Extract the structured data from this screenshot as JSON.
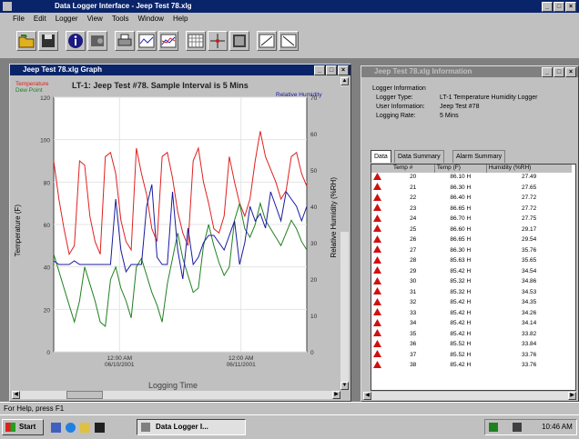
{
  "app": {
    "title": "Data Logger Interface - Jeep Test 78.xlg",
    "menu": [
      "File",
      "Edit",
      "Logger",
      "View",
      "Tools",
      "Window",
      "Help"
    ]
  },
  "graph_window": {
    "title": "Jeep Test 78.xlg Graph",
    "heading": "LT-1: Jeep Test #78.  Sample Interval is 5 Mins",
    "legend_temp": "Temperature",
    "legend_dew": "Dew Point",
    "legend_rh": "Relative Humidity"
  },
  "info_window": {
    "title": "Jeep Test 78.xlg Information",
    "section_label": "Logger Information",
    "fields": [
      {
        "label": "Logger Type:",
        "value": "LT-1 Temperature Humidity Logger"
      },
      {
        "label": "User Information:",
        "value": "Jeep Test #78"
      },
      {
        "label": "Logging Rate:",
        "value": "5 Mins"
      }
    ],
    "tabs": [
      "Data",
      "Data Summary",
      "Alarm Summary"
    ],
    "columns": [
      "Temp #",
      "Temp (F)",
      "Humidity (%RH)"
    ],
    "rows": [
      [
        "20",
        "86.10 H",
        "27.49"
      ],
      [
        "21",
        "86.30 H",
        "27.65"
      ],
      [
        "22",
        "86.40 H",
        "27.72"
      ],
      [
        "23",
        "86.65 H",
        "27.72"
      ],
      [
        "24",
        "86.70 H",
        "27.75"
      ],
      [
        "25",
        "86.60 H",
        "29.17"
      ],
      [
        "26",
        "86.65 H",
        "29.54"
      ],
      [
        "27",
        "86.30 H",
        "35.76"
      ],
      [
        "28",
        "85.63 H",
        "35.65"
      ],
      [
        "29",
        "85.42 H",
        "34.54"
      ],
      [
        "30",
        "85.32 H",
        "34.86"
      ],
      [
        "31",
        "85.32 H",
        "34.53"
      ],
      [
        "32",
        "85.42 H",
        "34.35"
      ],
      [
        "33",
        "85.42 H",
        "34.26"
      ],
      [
        "34",
        "85.42 H",
        "34.14"
      ],
      [
        "35",
        "85.42 H",
        "33.82"
      ],
      [
        "36",
        "85.52 H",
        "33.84"
      ],
      [
        "37",
        "85.52 H",
        "33.76"
      ],
      [
        "38",
        "85.42 H",
        "33.76"
      ]
    ]
  },
  "statusbar": {
    "text": "For Help, press F1"
  },
  "taskbar": {
    "start": "Start",
    "task": "Data Logger I...",
    "clock": "10:46 AM"
  },
  "colors": {
    "temperature": "#e02020",
    "dewpoint": "#208020",
    "humidity": "#1a1aa0",
    "alarm": "#d01010"
  },
  "chart_data": {
    "type": "line",
    "xlabel": "Logging Time",
    "ylabel": "Temperature (F)",
    "y2label": "Relative Humidity (%RH)",
    "ylim": [
      0,
      120
    ],
    "y2lim": [
      0,
      70
    ],
    "yticks": [
      "0",
      "20",
      "40",
      "60",
      "80",
      "100",
      "120"
    ],
    "y2ticks": [
      "0",
      "10",
      "20",
      "30",
      "40",
      "50",
      "60",
      "70"
    ],
    "xticks": [
      {
        "time": "12:00 AM",
        "date": "06/10/2001"
      },
      {
        "time": "12:00 AM",
        "date": "06/11/2001"
      }
    ],
    "series": [
      {
        "name": "Temperature",
        "axis": "left",
        "values": [
          90,
          72,
          58,
          46,
          50,
          90,
          88,
          64,
          52,
          46,
          92,
          94,
          84,
          62,
          52,
          48,
          96,
          84,
          74,
          58,
          52,
          92,
          94,
          82,
          66,
          56,
          50,
          90,
          96,
          80,
          70,
          58,
          56,
          64,
          92,
          80,
          70,
          64,
          72,
          90,
          104,
          92,
          86,
          80,
          72,
          76,
          92,
          94,
          84,
          78
        ]
      },
      {
        "name": "Dew Point",
        "axis": "left",
        "values": [
          46,
          38,
          30,
          22,
          14,
          24,
          40,
          32,
          24,
          14,
          12,
          34,
          40,
          30,
          24,
          16,
          40,
          44,
          36,
          28,
          22,
          14,
          32,
          44,
          56,
          44,
          36,
          28,
          30,
          50,
          60,
          50,
          42,
          36,
          40,
          62,
          70,
          58,
          54,
          60,
          70,
          62,
          58,
          54,
          50,
          56,
          62,
          58,
          52,
          48
        ]
      },
      {
        "name": "Relative Humidity",
        "axis": "right",
        "values": [
          25,
          24,
          24,
          24,
          25,
          24,
          24,
          24,
          24,
          24,
          24,
          24,
          42,
          28,
          22,
          24,
          24,
          24,
          40,
          46,
          26,
          24,
          24,
          44,
          28,
          20,
          34,
          24,
          26,
          30,
          32,
          32,
          30,
          28,
          32,
          36,
          24,
          30,
          40,
          36,
          38,
          34,
          44,
          40,
          36,
          44,
          42,
          40,
          36,
          40
        ]
      }
    ]
  }
}
